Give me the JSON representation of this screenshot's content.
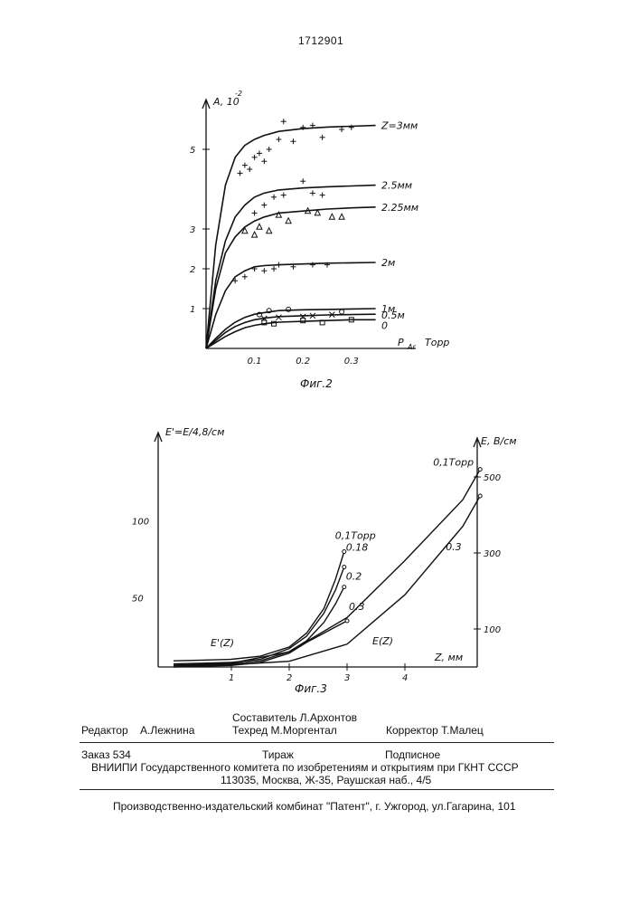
{
  "patent_number": "1712901",
  "figures": [
    {
      "caption": "Фиг.2",
      "y_label": "A, 10",
      "y_label_exp": "-2",
      "x_label": "P",
      "x_label_sub": "Ar",
      "x_unit": "Торр",
      "chart_data": {
        "type": "line",
        "x": [
          0,
          0.02,
          0.04,
          0.06,
          0.08,
          0.1,
          0.12,
          0.15,
          0.2,
          0.25,
          0.3,
          0.35
        ],
        "x_ticks": [
          "0.1",
          "0.2",
          "0.3"
        ],
        "y_ticks": [
          "1",
          "2",
          "3",
          "5"
        ],
        "series": [
          {
            "name": "Z=3мм",
            "values": [
              0,
              2.6,
              4.1,
              4.8,
              5.1,
              5.25,
              5.35,
              5.45,
              5.52,
              5.56,
              5.58,
              5.6
            ]
          },
          {
            "name": "2.5мм",
            "values": [
              0,
              1.7,
              2.7,
              3.3,
              3.6,
              3.8,
              3.9,
              3.98,
              4.03,
              4.06,
              4.08,
              4.1
            ]
          },
          {
            "name": "2.25мм",
            "values": [
              0,
              1.5,
              2.4,
              2.8,
              3.05,
              3.2,
              3.3,
              3.4,
              3.45,
              3.5,
              3.53,
              3.55
            ]
          },
          {
            "name": "2м",
            "values": [
              0,
              0.85,
              1.45,
              1.8,
              1.95,
              2.05,
              2.08,
              2.1,
              2.12,
              2.14,
              2.15,
              2.16
            ]
          },
          {
            "name": "1м",
            "values": [
              0,
              0.25,
              0.48,
              0.66,
              0.78,
              0.86,
              0.9,
              0.95,
              0.97,
              0.98,
              0.99,
              1.0
            ]
          },
          {
            "name": "0.5м",
            "values": [
              0,
              0.2,
              0.4,
              0.55,
              0.65,
              0.72,
              0.76,
              0.8,
              0.82,
              0.84,
              0.85,
              0.86
            ]
          },
          {
            "name": "0",
            "values": [
              0,
              0.15,
              0.3,
              0.42,
              0.52,
              0.58,
              0.62,
              0.66,
              0.68,
              0.7,
              0.72,
              0.72
            ]
          }
        ],
        "scatter": [
          {
            "series": "Z=3мм",
            "marker": "+",
            "points": [
              [
                0.07,
                4.4
              ],
              [
                0.08,
                4.6
              ],
              [
                0.09,
                4.5
              ],
              [
                0.1,
                4.8
              ],
              [
                0.11,
                4.9
              ],
              [
                0.12,
                4.7
              ],
              [
                0.13,
                5.0
              ],
              [
                0.15,
                5.25
              ],
              [
                0.16,
                5.7
              ],
              [
                0.18,
                5.2
              ],
              [
                0.2,
                5.55
              ],
              [
                0.22,
                5.6
              ],
              [
                0.24,
                5.3
              ],
              [
                0.28,
                5.5
              ],
              [
                0.3,
                5.55
              ]
            ]
          },
          {
            "series": "2.5мм",
            "marker": "+",
            "points": [
              [
                0.1,
                3.4
              ],
              [
                0.12,
                3.6
              ],
              [
                0.14,
                3.8
              ],
              [
                0.16,
                3.85
              ],
              [
                0.2,
                4.2
              ],
              [
                0.22,
                3.9
              ],
              [
                0.24,
                3.85
              ]
            ]
          },
          {
            "series": "2.25мм",
            "marker": "triangle",
            "points": [
              [
                0.08,
                2.95
              ],
              [
                0.1,
                2.85
              ],
              [
                0.11,
                3.05
              ],
              [
                0.13,
                2.95
              ],
              [
                0.15,
                3.35
              ],
              [
                0.17,
                3.2
              ],
              [
                0.21,
                3.45
              ],
              [
                0.23,
                3.4
              ],
              [
                0.26,
                3.3
              ],
              [
                0.28,
                3.3
              ]
            ]
          },
          {
            "series": "2м",
            "marker": "+",
            "points": [
              [
                0.06,
                1.7
              ],
              [
                0.08,
                1.8
              ],
              [
                0.1,
                2.0
              ],
              [
                0.12,
                1.95
              ],
              [
                0.14,
                2.0
              ],
              [
                0.15,
                2.1
              ],
              [
                0.18,
                2.05
              ],
              [
                0.22,
                2.1
              ],
              [
                0.25,
                2.1
              ]
            ]
          },
          {
            "series": "1м",
            "marker": "circle",
            "points": [
              [
                0.11,
                0.85
              ],
              [
                0.13,
                0.95
              ],
              [
                0.17,
                0.98
              ],
              [
                0.28,
                0.92
              ]
            ]
          },
          {
            "series": "0.5м",
            "marker": "x",
            "points": [
              [
                0.12,
                0.75
              ],
              [
                0.15,
                0.78
              ],
              [
                0.2,
                0.8
              ],
              [
                0.22,
                0.82
              ],
              [
                0.26,
                0.85
              ]
            ]
          },
          {
            "series": "0",
            "marker": "square",
            "points": [
              [
                0.12,
                0.65
              ],
              [
                0.14,
                0.62
              ],
              [
                0.2,
                0.7
              ],
              [
                0.24,
                0.65
              ],
              [
                0.3,
                0.72
              ]
            ]
          }
        ]
      }
    },
    {
      "caption": "Фиг.3",
      "left_axis_label": "E'=E/4,8/см",
      "right_axis_label": "E, В/см",
      "x_axis_label": "Z, мм",
      "chart_data": {
        "type": "line",
        "x_ticks": [
          "1",
          "2",
          "3",
          "4"
        ],
        "left_ticks": [
          "50",
          "100"
        ],
        "right_ticks": [
          "100",
          "300",
          "500"
        ],
        "annotations": [
          "E'(Z)",
          "E(Z)"
        ],
        "series": [
          {
            "name": "0,1Торр",
            "axis": "left",
            "x": [
              0,
              0.5,
              1.0,
              1.5,
              2.0,
              2.3,
              2.6,
              2.8,
              2.95
            ],
            "y": [
              9,
              9.5,
              10,
              12,
              18,
              27,
              43,
              62,
              80
            ]
          },
          {
            "name": "0.18",
            "axis": "left",
            "x": [
              0,
              0.5,
              1.0,
              1.5,
              2.0,
              2.3,
              2.6,
              2.8,
              2.95
            ],
            "y": [
              7,
              7.5,
              8,
              10,
              17,
              25,
              40,
              55,
              70
            ]
          },
          {
            "name": "0.2",
            "axis": "left",
            "x": [
              0,
              0.5,
              1.0,
              1.5,
              2.0,
              2.3,
              2.6,
              2.8,
              2.95
            ],
            "y": [
              6,
              6.5,
              7,
              9,
              15,
              22,
              34,
              46,
              57
            ]
          },
          {
            "name": "0.3",
            "axis": "left",
            "x": [
              0,
              0.5,
              1.0,
              1.5,
              2.0,
              2.3,
              2.6,
              2.8,
              3.0
            ],
            "y": [
              5,
              5.5,
              6,
              8,
              14,
              21,
              27,
              31,
              35
            ]
          },
          {
            "name": "0,1Торр",
            "axis": "right",
            "x": [
              0,
              1.0,
              2.0,
              3.0,
              4.0,
              5.0,
              5.3
            ],
            "y": [
              5,
              10,
              40,
              130,
              280,
              440,
              520
            ]
          },
          {
            "name": "0.3",
            "axis": "right",
            "x": [
              0,
              1.0,
              2.0,
              3.0,
              4.0,
              5.0,
              5.3
            ],
            "y": [
              3,
              6,
              15,
              60,
              190,
              370,
              450
            ]
          }
        ]
      }
    }
  ],
  "imprint": {
    "compiler": "Составитель   Л.Архонтов",
    "editor_label": "Редактор",
    "editor": "А.Лежнина",
    "tech_editor": "Техред М.Моргентал",
    "corrector": "Корректор  Т.Малец",
    "order": "Заказ  534",
    "circulation": "Тираж",
    "subscription": "Подписное",
    "institute": "ВНИИПИ Государственного комитета по изобретениям и открытиям при ГКНТ СССР",
    "address": "113035, Москва, Ж-35, Раушская наб., 4/5",
    "publisher": "Производственно-издательский комбинат \"Патент\", г. Ужгород, ул.Гагарина, 101"
  }
}
